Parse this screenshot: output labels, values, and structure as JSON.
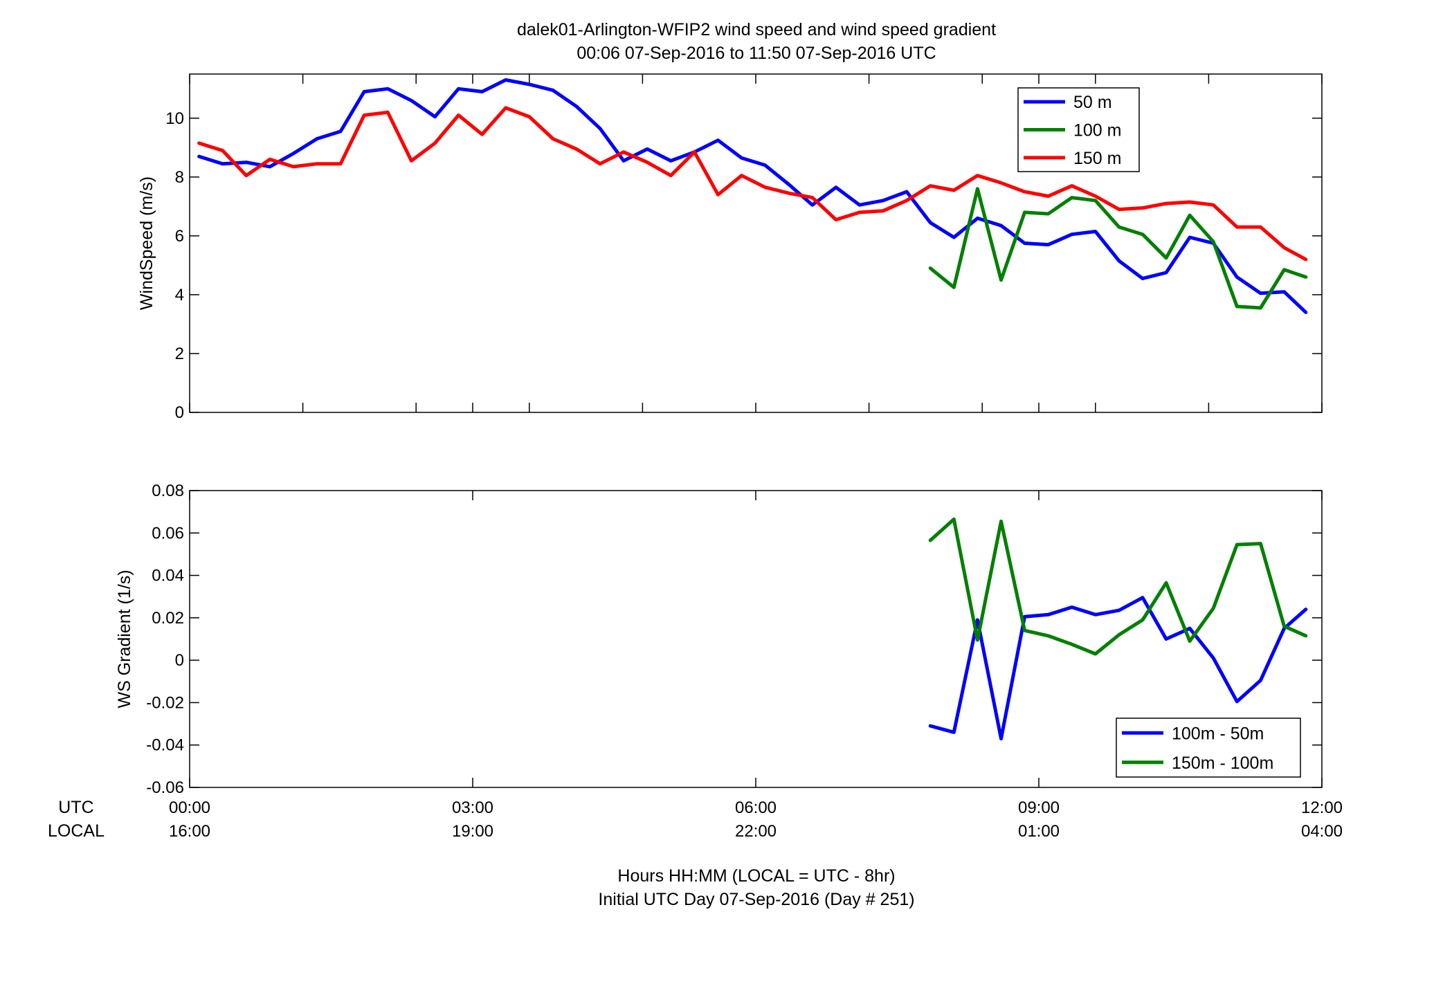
{
  "figure": {
    "title_line1": "dalek01-Arlington-WFIP2  wind speed and wind speed gradient",
    "title_line2": "00:06 07-Sep-2016 to 11:50 07-Sep-2016  UTC",
    "xlabel_line1": "Hours HH:MM  (LOCAL = UTC - 8hr)",
    "xlabel_line2": "Initial UTC Day 07-Sep-2016 (Day # 251)",
    "utc_row_label": "UTC",
    "local_row_label": "LOCAL"
  },
  "colors": {
    "blue": "#0000ff",
    "green": "#008000",
    "red": "#ff0000"
  },
  "chart_data": [
    {
      "type": "line",
      "ylabel": "WindSpeed (m/s)",
      "xlim": [
        0,
        12
      ],
      "ylim": [
        0,
        11.5
      ],
      "yticks": [
        0,
        2,
        4,
        6,
        8,
        10
      ],
      "ytick_labels": [
        "0",
        "2",
        "4",
        "6",
        "8",
        "10"
      ],
      "xticks": [
        0,
        1.2,
        2.4,
        3,
        3.6,
        4.8,
        6,
        7.2,
        8.4,
        9,
        9.6,
        10.8,
        12
      ],
      "xtick_labels_utc": [
        "00:00",
        "03:00",
        "06:00",
        "09:00",
        "12:00"
      ],
      "xtick_labels_local": [
        "16:00",
        "19:00",
        "22:00",
        "01:00",
        "04:00"
      ],
      "xtick_label_positions": [
        0,
        3,
        6,
        9,
        12
      ],
      "legend_position": "top-right",
      "series": [
        {
          "name": "50 m",
          "color": "#0000ff",
          "x": [
            0.1,
            0.35,
            0.6,
            0.85,
            1.1,
            1.35,
            1.6,
            1.85,
            2.1,
            2.35,
            2.6,
            2.85,
            3.1,
            3.35,
            3.6,
            3.85,
            4.1,
            4.35,
            4.6,
            4.85,
            5.1,
            5.35,
            5.6,
            5.85,
            6.1,
            6.35,
            6.6,
            6.85,
            7.1,
            7.35,
            7.6,
            7.85,
            8.1,
            8.35,
            8.6,
            8.85,
            9.1,
            9.35,
            9.6,
            9.85,
            10.1,
            10.35,
            10.6,
            10.85,
            11.1,
            11.35,
            11.6,
            11.83
          ],
          "y": [
            8.7,
            8.45,
            8.5,
            8.35,
            8.8,
            9.3,
            9.55,
            10.9,
            11.0,
            10.6,
            10.05,
            11.0,
            10.9,
            11.3,
            11.15,
            10.95,
            10.4,
            9.65,
            8.55,
            8.95,
            8.55,
            8.85,
            9.25,
            8.65,
            8.4,
            7.75,
            7.05,
            7.65,
            7.05,
            7.2,
            7.5,
            6.45,
            5.95,
            6.6,
            6.35,
            5.75,
            5.7,
            6.05,
            6.15,
            5.15,
            4.55,
            4.75,
            5.95,
            5.75,
            4.6,
            4.05,
            4.1,
            3.4
          ]
        },
        {
          "name": "100 m",
          "color": "#008000",
          "x": [
            7.85,
            8.1,
            8.35,
            8.6,
            8.85,
            9.1,
            9.35,
            9.6,
            9.85,
            10.1,
            10.35,
            10.6,
            10.85,
            11.1,
            11.35,
            11.6,
            11.83
          ],
          "y": [
            4.9,
            4.25,
            7.6,
            4.5,
            6.8,
            6.75,
            7.3,
            7.2,
            6.3,
            6.05,
            5.25,
            6.7,
            5.8,
            3.6,
            3.55,
            4.85,
            4.6
          ]
        },
        {
          "name": "150 m",
          "color": "#ff0000",
          "x": [
            0.1,
            0.35,
            0.6,
            0.85,
            1.1,
            1.35,
            1.6,
            1.85,
            2.1,
            2.35,
            2.6,
            2.85,
            3.1,
            3.35,
            3.6,
            3.85,
            4.1,
            4.35,
            4.6,
            4.85,
            5.1,
            5.35,
            5.6,
            5.85,
            6.1,
            6.35,
            6.6,
            6.85,
            7.1,
            7.35,
            7.6,
            7.85,
            8.1,
            8.35,
            8.6,
            8.85,
            9.1,
            9.35,
            9.6,
            9.85,
            10.1,
            10.35,
            10.6,
            10.85,
            11.1,
            11.35,
            11.6,
            11.83
          ],
          "y": [
            9.15,
            8.9,
            8.05,
            8.6,
            8.35,
            8.45,
            8.45,
            10.1,
            10.2,
            8.55,
            9.15,
            10.1,
            9.45,
            10.35,
            10.05,
            9.3,
            8.95,
            8.45,
            8.85,
            8.5,
            8.05,
            8.85,
            7.4,
            8.05,
            7.65,
            7.45,
            7.3,
            6.55,
            6.8,
            6.85,
            7.2,
            7.7,
            7.55,
            8.05,
            7.8,
            7.5,
            7.35,
            7.7,
            7.35,
            6.9,
            6.95,
            7.1,
            7.15,
            7.05,
            6.3,
            6.3,
            5.6,
            5.2
          ]
        }
      ]
    },
    {
      "type": "line",
      "ylabel": "WS Gradient (1/s)",
      "xlim": [
        0,
        12
      ],
      "ylim": [
        -0.06,
        0.08
      ],
      "yticks": [
        -0.06,
        -0.04,
        -0.02,
        0,
        0.02,
        0.04,
        0.06,
        0.08
      ],
      "ytick_labels": [
        "-0.06",
        "-0.04",
        "-0.02",
        "0",
        "0.02",
        "0.04",
        "0.06",
        "0.08"
      ],
      "xticks": [
        0,
        3,
        6,
        9,
        12
      ],
      "legend_position": "bottom-right",
      "series": [
        {
          "name": "100m - 50m",
          "color": "#0000ff",
          "x": [
            7.85,
            8.1,
            8.35,
            8.6,
            8.85,
            9.1,
            9.35,
            9.6,
            9.85,
            10.1,
            10.35,
            10.6,
            10.85,
            11.1,
            11.35,
            11.6,
            11.83
          ],
          "y": [
            -0.031,
            -0.034,
            0.019,
            -0.037,
            0.0205,
            0.0215,
            0.025,
            0.0215,
            0.0235,
            0.0295,
            0.01,
            0.015,
            0.001,
            -0.0195,
            -0.0095,
            0.015,
            0.024
          ]
        },
        {
          "name": "150m - 100m",
          "color": "#008000",
          "x": [
            7.85,
            8.1,
            8.35,
            8.6,
            8.85,
            9.1,
            9.35,
            9.6,
            9.85,
            10.1,
            10.35,
            10.6,
            10.85,
            11.1,
            11.35,
            11.6,
            11.83
          ],
          "y": [
            0.0565,
            0.0665,
            0.0095,
            0.0655,
            0.014,
            0.0115,
            0.0075,
            0.003,
            0.012,
            0.019,
            0.0365,
            0.009,
            0.0245,
            0.0545,
            0.055,
            0.016,
            0.0115
          ]
        }
      ]
    }
  ]
}
